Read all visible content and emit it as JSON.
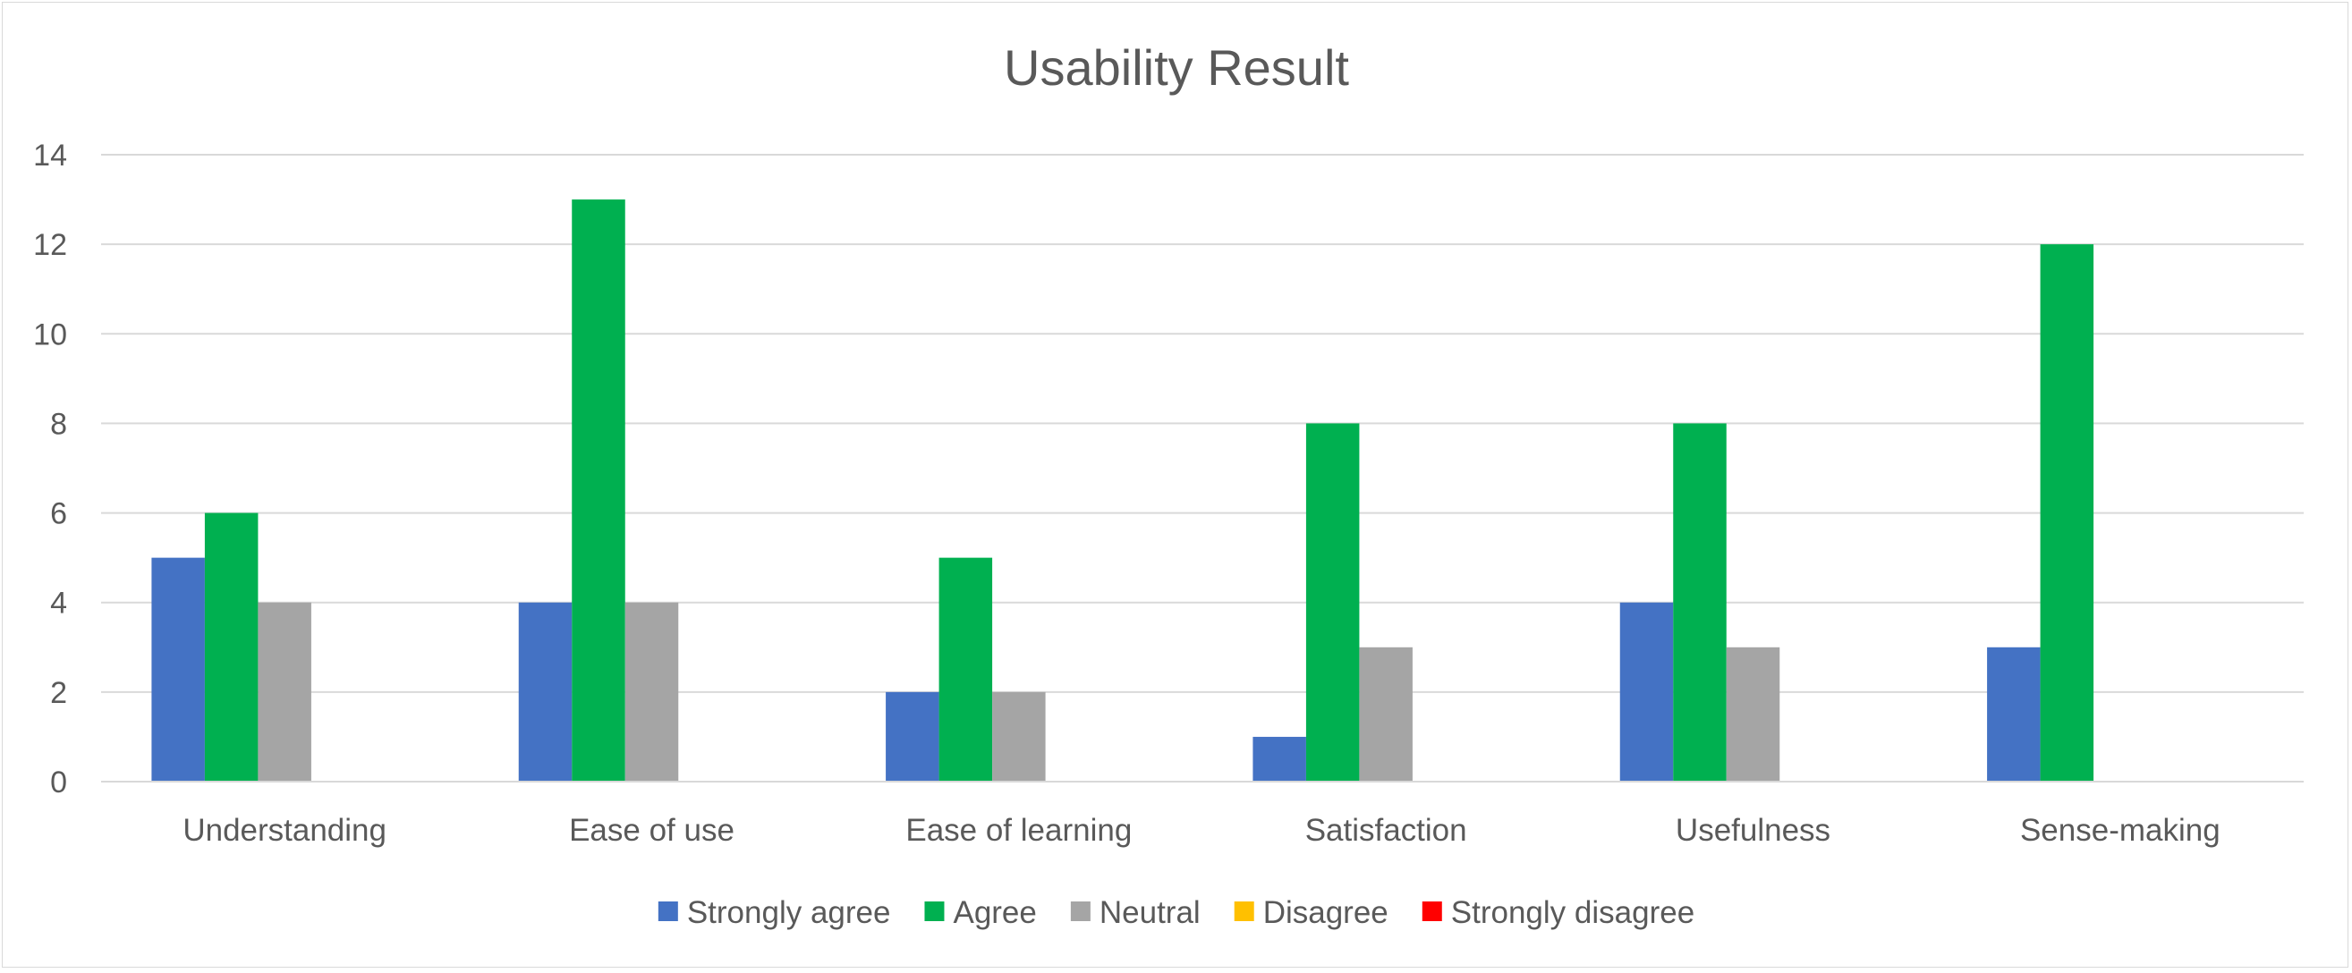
{
  "chart_data": {
    "type": "bar",
    "title": "Usability Result",
    "xlabel": "",
    "ylabel": "",
    "ylim": [
      0,
      14
    ],
    "y_ticks": [
      "0",
      "2",
      "4",
      "6",
      "8",
      "10",
      "12",
      "14"
    ],
    "grid": "horizontal",
    "legend_position": "bottom",
    "categories": [
      "Understanding",
      "Ease of use",
      "Ease of learning",
      "Satisfaction",
      "Usefulness",
      "Sense-making"
    ],
    "series": [
      {
        "name": "Strongly agree",
        "color": "#4472c4",
        "values": [
          5,
          4,
          2,
          1,
          4,
          3
        ]
      },
      {
        "name": "Agree",
        "color": "#00b050",
        "values": [
          6,
          13,
          5,
          8,
          8,
          12
        ]
      },
      {
        "name": "Neutral",
        "color": "#a5a5a5",
        "values": [
          4,
          4,
          2,
          3,
          3,
          0
        ]
      },
      {
        "name": "Disagree",
        "color": "#ffc000",
        "values": [
          0,
          0,
          0,
          0,
          0,
          0
        ]
      },
      {
        "name": "Strongly disagree",
        "color": "#ff0000",
        "values": [
          0,
          0,
          0,
          0,
          0,
          0
        ]
      }
    ]
  }
}
